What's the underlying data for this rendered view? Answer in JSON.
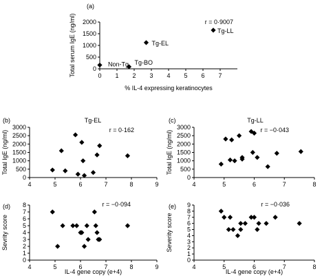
{
  "chart_data": [
    {
      "panel": "(a)",
      "type": "scatter",
      "title": "",
      "xlabel": "% IL-4 expressing keratinocytes",
      "ylabel": "Total serum IgE (ng/ml)",
      "stat": "r = 0·9007",
      "xlim": [
        0,
        8
      ],
      "ylim": [
        0,
        2000
      ],
      "xticks": [
        0,
        1,
        2,
        3,
        4,
        5,
        6,
        7
      ],
      "yticks": [
        0,
        500,
        1000,
        1500,
        2000
      ],
      "points": [
        {
          "x": 0.0,
          "y": 160,
          "label": "Non-Tg"
        },
        {
          "x": 1.7,
          "y": 90,
          "label": "Tg-BO"
        },
        {
          "x": 2.7,
          "y": 1120,
          "label": "Tg-EL"
        },
        {
          "x": 6.6,
          "y": 1650,
          "label": "Tg-LL"
        }
      ]
    },
    {
      "panel": "(b)",
      "type": "scatter",
      "title": "Tg-EL",
      "xlabel": "",
      "ylabel": "Total IgE (ng/ml)",
      "stat": "r = 0·162",
      "xlim": [
        4,
        9
      ],
      "ylim": [
        0,
        3000
      ],
      "xticks": [
        4,
        5,
        6,
        7,
        8,
        9
      ],
      "yticks": [
        0,
        500,
        1000,
        1500,
        2000,
        2500,
        3000
      ],
      "points": [
        {
          "x": 4.9,
          "y": 450
        },
        {
          "x": 5.25,
          "y": 1600
        },
        {
          "x": 5.4,
          "y": 400
        },
        {
          "x": 5.8,
          "y": 2550
        },
        {
          "x": 5.9,
          "y": 200
        },
        {
          "x": 6.05,
          "y": 2100
        },
        {
          "x": 6.1,
          "y": 1000
        },
        {
          "x": 6.15,
          "y": 120
        },
        {
          "x": 6.5,
          "y": 300
        },
        {
          "x": 6.65,
          "y": 1350
        },
        {
          "x": 6.75,
          "y": 1900
        },
        {
          "x": 7.85,
          "y": 1300
        }
      ]
    },
    {
      "panel": "(c)",
      "type": "scatter",
      "title": "Tg-LL",
      "xlabel": "",
      "ylabel": "Total IgE (ng/ml)",
      "stat": "r = −0·043",
      "xlim": [
        4,
        8
      ],
      "ylim": [
        0,
        3000
      ],
      "xticks": [
        4,
        5,
        6,
        7,
        8
      ],
      "yticks": [
        0,
        500,
        1000,
        1500,
        2000,
        2500,
        3000
      ],
      "points": [
        {
          "x": 4.9,
          "y": 800
        },
        {
          "x": 5.05,
          "y": 2300
        },
        {
          "x": 5.2,
          "y": 1050
        },
        {
          "x": 5.25,
          "y": 2250
        },
        {
          "x": 5.35,
          "y": 1000
        },
        {
          "x": 5.5,
          "y": 2500
        },
        {
          "x": 5.6,
          "y": 1100
        },
        {
          "x": 5.6,
          "y": 1200
        },
        {
          "x": 5.9,
          "y": 2750
        },
        {
          "x": 5.95,
          "y": 1500
        },
        {
          "x": 6.0,
          "y": 2650
        },
        {
          "x": 6.1,
          "y": 1200
        },
        {
          "x": 6.45,
          "y": 650
        },
        {
          "x": 6.75,
          "y": 1450
        },
        {
          "x": 7.55,
          "y": 1550
        }
      ]
    },
    {
      "panel": "(d)",
      "type": "scatter",
      "title": "",
      "xlabel": "IL-4 gene copy (e+4)",
      "ylabel": "Sevrity score",
      "stat": "r = −0·094",
      "xlim": [
        4,
        9
      ],
      "ylim": [
        0,
        8
      ],
      "xticks": [
        4,
        5,
        6,
        7,
        8,
        9
      ],
      "yticks": [
        0,
        1,
        2,
        3,
        4,
        5,
        6,
        7,
        8
      ],
      "points": [
        {
          "x": 4.9,
          "y": 7
        },
        {
          "x": 5.1,
          "y": 2
        },
        {
          "x": 5.3,
          "y": 5
        },
        {
          "x": 5.7,
          "y": 5
        },
        {
          "x": 5.85,
          "y": 5
        },
        {
          "x": 6.0,
          "y": 4
        },
        {
          "x": 6.05,
          "y": 4
        },
        {
          "x": 6.15,
          "y": 2
        },
        {
          "x": 6.25,
          "y": 5
        },
        {
          "x": 6.3,
          "y": 3
        },
        {
          "x": 6.55,
          "y": 7
        },
        {
          "x": 6.6,
          "y": 5
        },
        {
          "x": 6.65,
          "y": 4
        },
        {
          "x": 6.7,
          "y": 3
        },
        {
          "x": 6.75,
          "y": 3
        },
        {
          "x": 7.85,
          "y": 5
        }
      ]
    },
    {
      "panel": "(e)",
      "type": "scatter",
      "title": "",
      "xlabel": "IL-4 gene copy (e+4)",
      "ylabel": "Severity score",
      "stat": "r = −0·036",
      "xlim": [
        4,
        8
      ],
      "ylim": [
        0,
        9
      ],
      "xticks": [
        4,
        5,
        6,
        7,
        8
      ],
      "yticks": [
        0,
        1,
        2,
        3,
        4,
        5,
        6,
        7,
        8,
        9
      ],
      "points": [
        {
          "x": 4.9,
          "y": 8
        },
        {
          "x": 5.0,
          "y": 7
        },
        {
          "x": 5.15,
          "y": 5
        },
        {
          "x": 5.2,
          "y": 7
        },
        {
          "x": 5.3,
          "y": 5
        },
        {
          "x": 5.45,
          "y": 4
        },
        {
          "x": 5.55,
          "y": 6
        },
        {
          "x": 5.55,
          "y": 5
        },
        {
          "x": 5.7,
          "y": 6
        },
        {
          "x": 5.9,
          "y": 7
        },
        {
          "x": 6.0,
          "y": 7
        },
        {
          "x": 6.1,
          "y": 5
        },
        {
          "x": 6.15,
          "y": 6
        },
        {
          "x": 6.4,
          "y": 6
        },
        {
          "x": 6.7,
          "y": 7
        },
        {
          "x": 7.5,
          "y": 6
        }
      ]
    }
  ]
}
